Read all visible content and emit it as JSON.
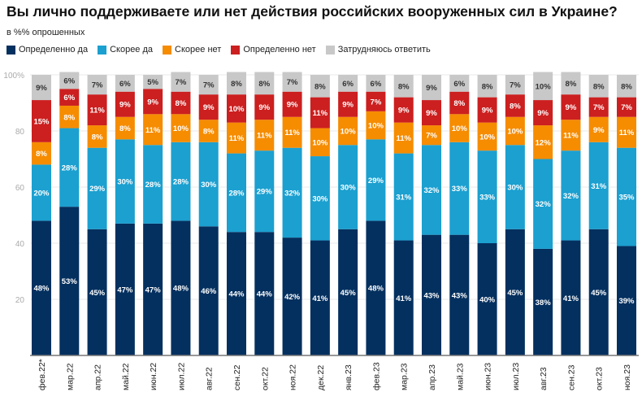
{
  "chart_data": {
    "type": "bar",
    "stacked": true,
    "title": "Вы лично поддерживаете или нет действия российских вооруженных сил в Украине?",
    "subtitle": "в %% опрошенных",
    "ylim": [
      0,
      100
    ],
    "yticks": [
      "20",
      "40",
      "60",
      "80",
      "100%"
    ],
    "grid": true,
    "legend_position": "top-left",
    "categories": [
      "фев.22*",
      "мар.22",
      "апр.22",
      "май.22",
      "июн.22",
      "июл.22",
      "авг.22",
      "сен.22",
      "окт.22",
      "ноя.22",
      "дек.22",
      "янв.23",
      "фев.23",
      "мар.23",
      "апр.23",
      "май.23",
      "июн.23",
      "июл.23",
      "авг.23",
      "сен.23",
      "окт.23",
      "ноя.23"
    ],
    "series": [
      {
        "name": "Определенно да",
        "color": "#04305f",
        "label_color": "#ffffff",
        "values": [
          48,
          53,
          45,
          47,
          47,
          48,
          46,
          44,
          44,
          42,
          41,
          45,
          48,
          41,
          43,
          43,
          40,
          45,
          38,
          41,
          45,
          39
        ]
      },
      {
        "name": "Скорее да",
        "color": "#1ba0d0",
        "label_color": "#ffffff",
        "values": [
          20,
          28,
          29,
          30,
          28,
          28,
          30,
          28,
          29,
          32,
          30,
          30,
          29,
          31,
          32,
          33,
          33,
          30,
          32,
          32,
          31,
          35
        ]
      },
      {
        "name": "Скорее нет",
        "color": "#f68c00",
        "label_color": "#ffffff",
        "values": [
          8,
          8,
          8,
          8,
          11,
          10,
          8,
          11,
          11,
          11,
          10,
          10,
          10,
          11,
          7,
          10,
          10,
          10,
          12,
          11,
          9,
          11
        ]
      },
      {
        "name": "Определенно нет",
        "color": "#cc1f1f",
        "label_color": "#ffffff",
        "values": [
          15,
          6,
          11,
          9,
          9,
          8,
          9,
          10,
          9,
          9,
          11,
          9,
          7,
          9,
          9,
          8,
          9,
          8,
          9,
          9,
          7,
          7
        ]
      },
      {
        "name": "Затрудняюсь ответить",
        "color": "#c8c8c8",
        "label_color": "#333333",
        "values": [
          9,
          6,
          7,
          6,
          5,
          7,
          7,
          8,
          8,
          7,
          8,
          6,
          6,
          8,
          9,
          6,
          8,
          7,
          10,
          8,
          8,
          8
        ]
      }
    ]
  }
}
